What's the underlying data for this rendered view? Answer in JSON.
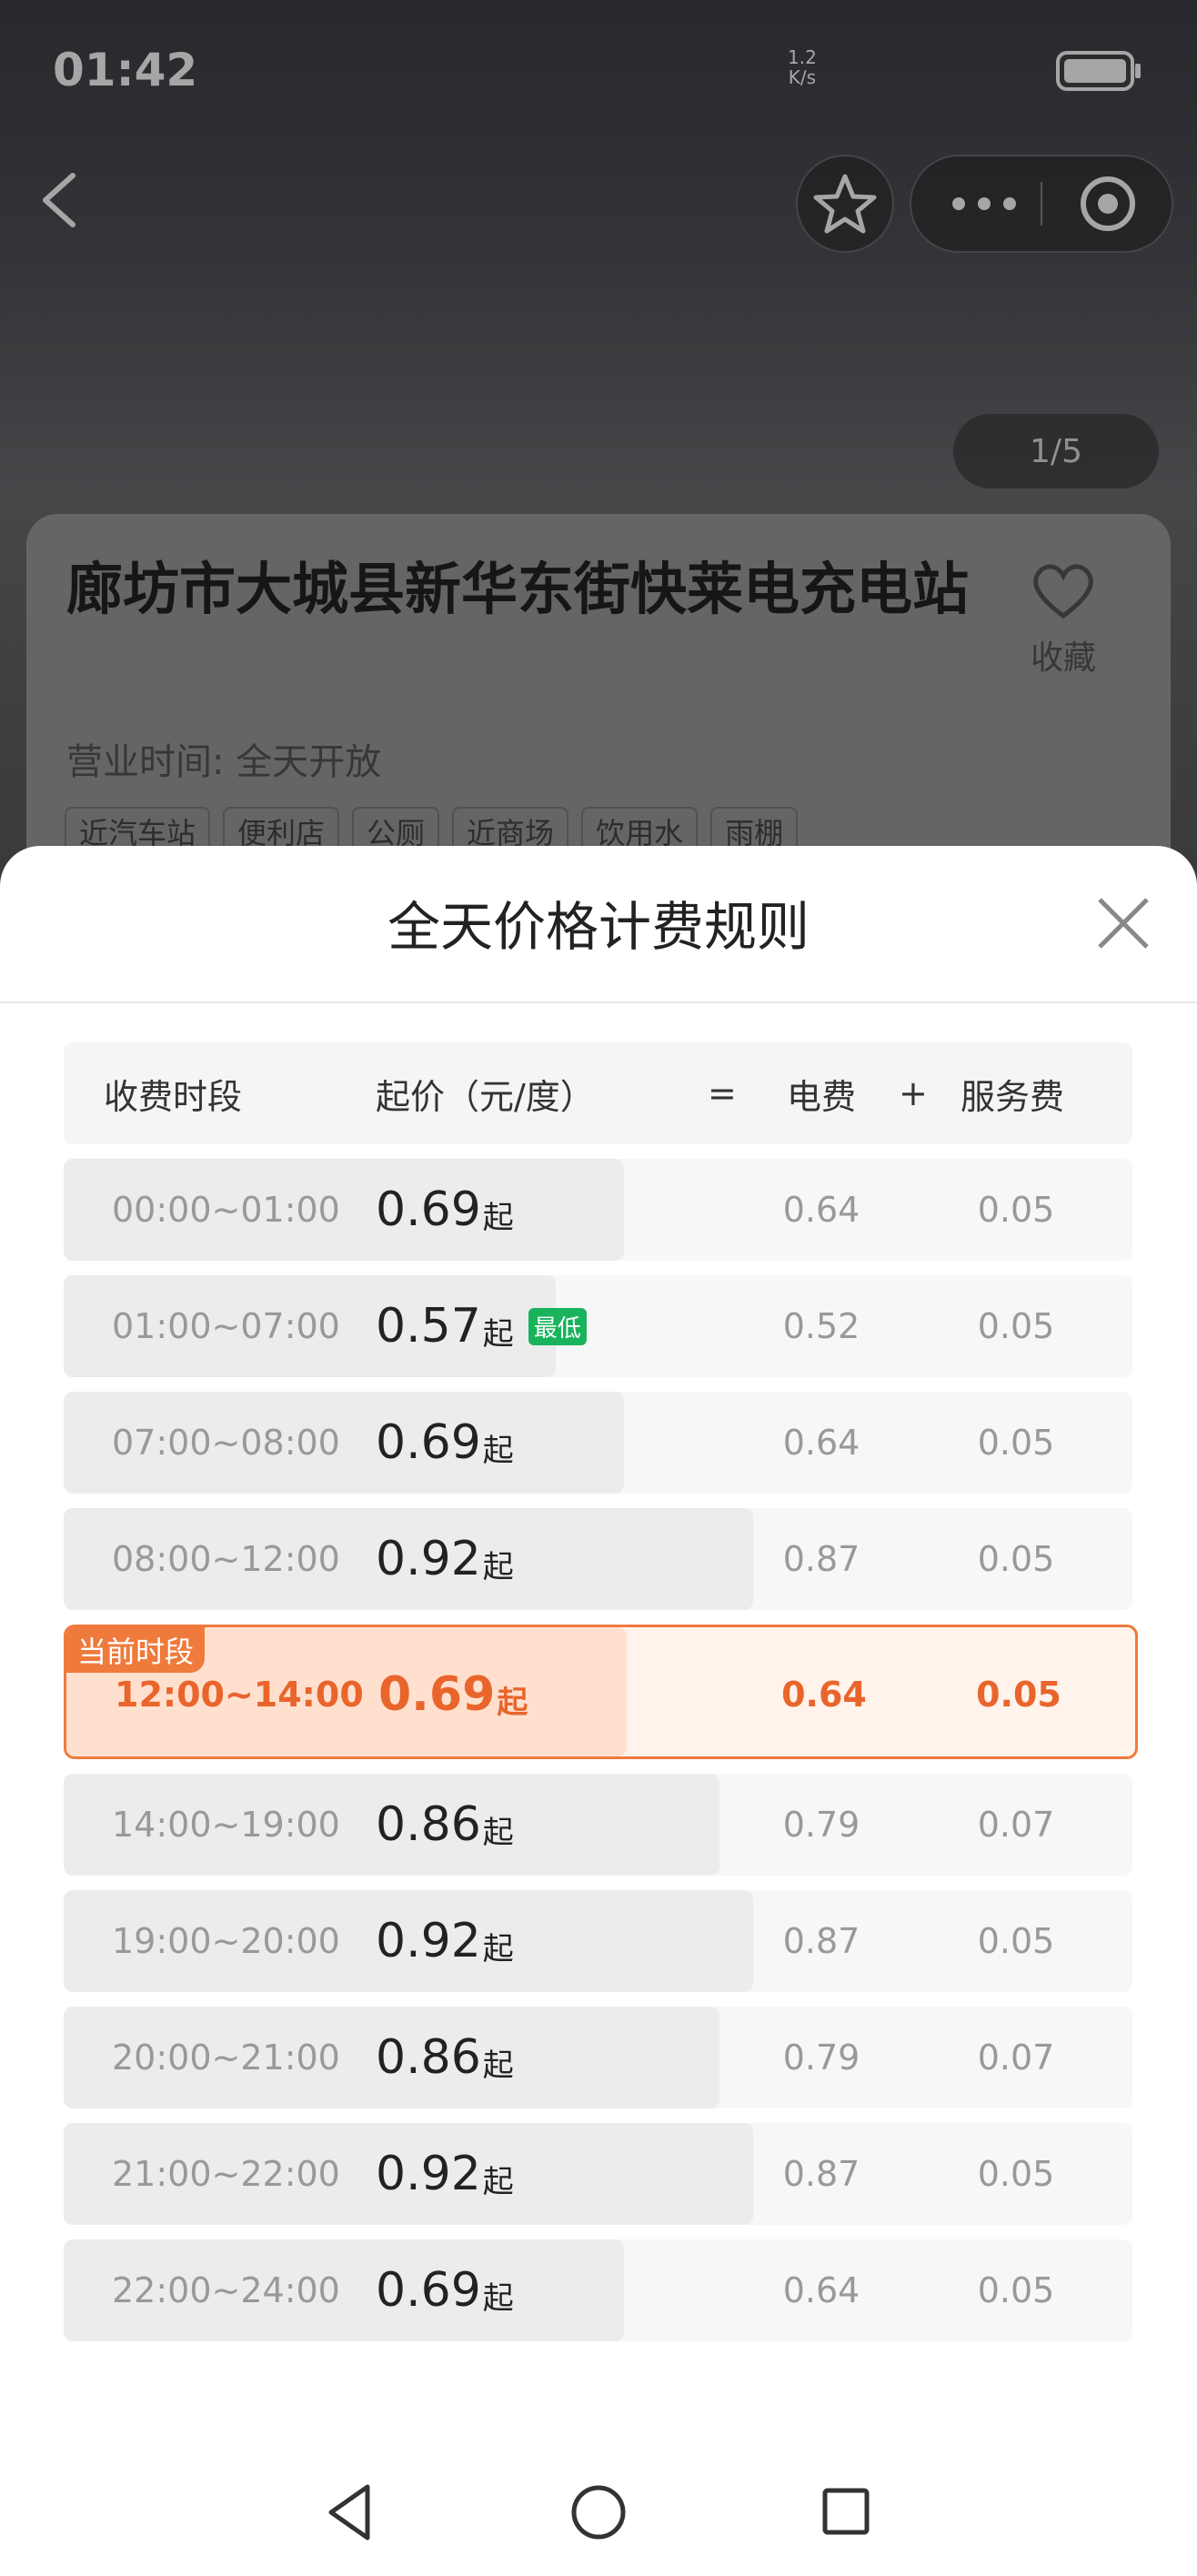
{
  "status_bar": {
    "time": "01:42",
    "speed": "1.2",
    "speed_unit": "K/s"
  },
  "photo": {
    "counter": "1/5"
  },
  "station": {
    "name": "廊坊市大城县新华东街快莱电充电站",
    "favorite": "收藏",
    "hours": "营业时间: 全天开放",
    "tags": [
      "近汽车站",
      "便利店",
      "公厕",
      "近商场",
      "饮用水",
      "雨棚"
    ]
  },
  "modal": {
    "title": "全天价格计费规则",
    "columns": [
      "收费时段",
      "起价（元/度）",
      "=",
      "电费",
      "+",
      "服务费"
    ],
    "price_suffix": "起",
    "lowest_badge": "最低",
    "current_label": "当前时段",
    "rows": [
      {
        "period": "00:00~01:00",
        "price": 0.69,
        "electricity": 0.64,
        "service": 0.05
      },
      {
        "period": "01:00~07:00",
        "price": 0.57,
        "electricity": 0.52,
        "service": 0.05,
        "lowest": true
      },
      {
        "period": "07:00~08:00",
        "price": 0.69,
        "electricity": 0.64,
        "service": 0.05
      },
      {
        "period": "08:00~12:00",
        "price": 0.92,
        "electricity": 0.87,
        "service": 0.05
      },
      {
        "period": "12:00~14:00",
        "price": 0.69,
        "electricity": 0.64,
        "service": 0.05,
        "current": true
      },
      {
        "period": "14:00~19:00",
        "price": 0.86,
        "electricity": 0.79,
        "service": 0.07
      },
      {
        "period": "19:00~20:00",
        "price": 0.92,
        "electricity": 0.87,
        "service": 0.05
      },
      {
        "period": "20:00~21:00",
        "price": 0.86,
        "electricity": 0.79,
        "service": 0.07
      },
      {
        "period": "21:00~22:00",
        "price": 0.92,
        "electricity": 0.87,
        "service": 0.05
      },
      {
        "period": "22:00~24:00",
        "price": 0.69,
        "electricity": 0.64,
        "service": 0.05
      }
    ]
  }
}
